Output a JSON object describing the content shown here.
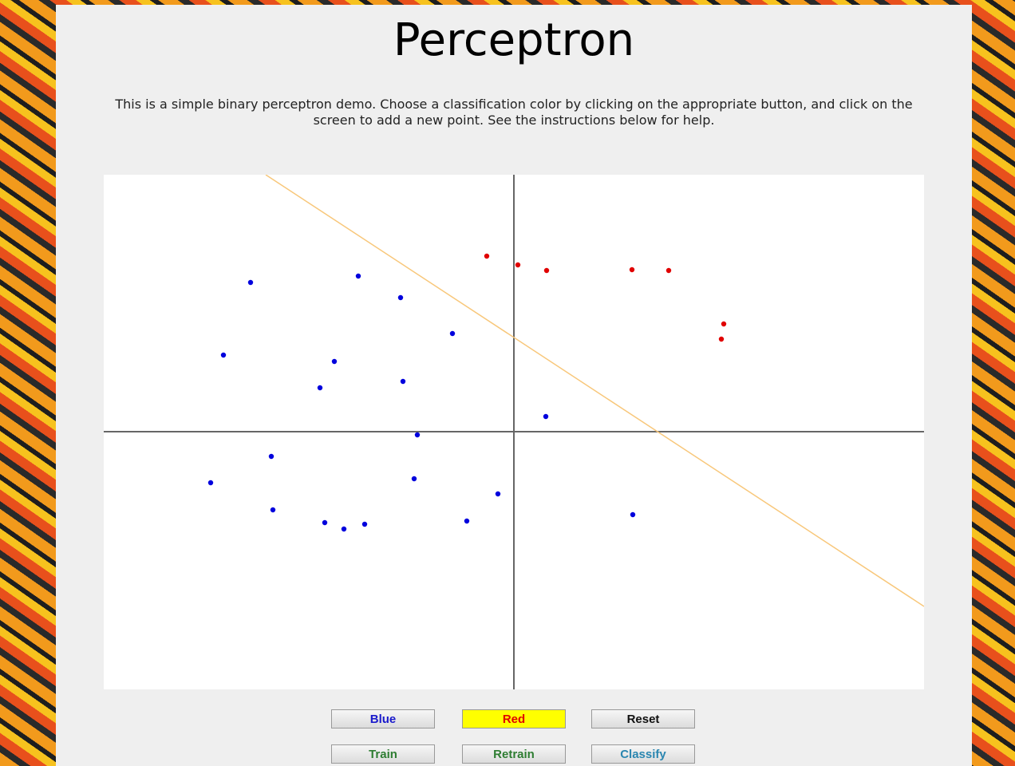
{
  "header": {
    "title": "Perceptron",
    "description": "This is a simple binary perceptron demo. Choose a classification color by clicking on the appropriate button, and click on the screen to add a new point. See the instructions below for help."
  },
  "chart_data": {
    "type": "scatter",
    "xlim": [
      -514,
      514
    ],
    "ylim": [
      -323,
      322
    ],
    "series": [
      {
        "color": "#e00000",
        "x": [
          -34,
          5,
          41,
          148,
          194,
          263,
          260
        ],
        "y": [
          220,
          209,
          202,
          203,
          202,
          135,
          116
        ]
      },
      {
        "color": "#0000dd",
        "x": [
          -330,
          -195,
          -142,
          -77,
          -364,
          -225,
          -243,
          -139,
          40,
          -121,
          -304,
          -380,
          -125,
          -20,
          -302,
          -237,
          -213,
          -187,
          -59,
          149
        ],
        "y": [
          187,
          195,
          168,
          123,
          96,
          88,
          55,
          63,
          19,
          -4,
          -31,
          -64,
          -59,
          -78,
          -98,
          -114,
          -122,
          -116,
          -112,
          -104
        ]
      }
    ],
    "boundary": {
      "color": "#f8c77a",
      "x": [
        -311,
        514
      ],
      "y": [
        322,
        -219
      ]
    }
  },
  "buttons": [
    {
      "label": "Blue",
      "color": "#1a1acc",
      "background": "#e6e6e6"
    },
    {
      "label": "Red",
      "color": "#e00000",
      "background": "#ffff00"
    },
    {
      "label": "Reset",
      "color": "#111111",
      "background": "#e6e6e6"
    },
    {
      "label": "Train",
      "color": "#2e7d32",
      "background": "#e6e6e6"
    },
    {
      "label": "Retrain",
      "color": "#2e7d32",
      "background": "#e6e6e6"
    },
    {
      "label": "Classify",
      "color": "#2a86b0",
      "background": "#e6e6e6"
    }
  ]
}
